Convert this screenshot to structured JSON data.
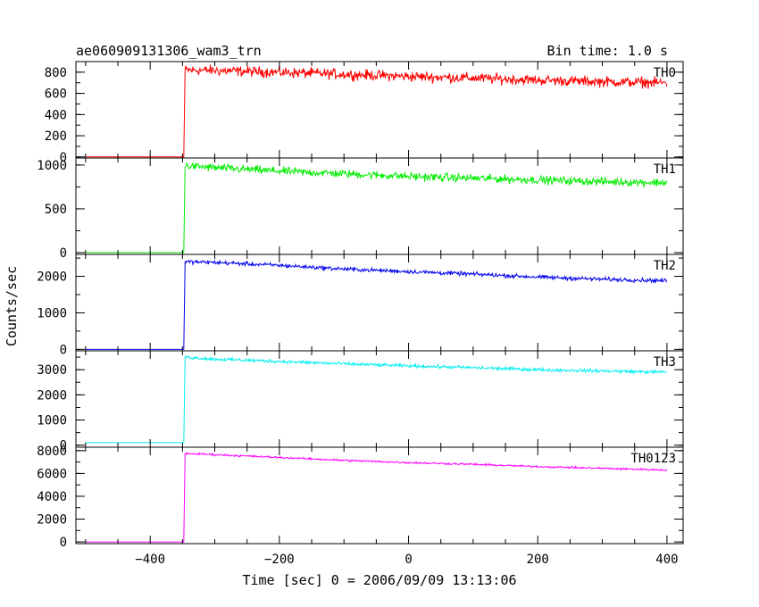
{
  "header": {
    "title": "ae060909131306_wam3_trn",
    "bin_time": "Bin time: 1.0 s"
  },
  "chart_data": {
    "type": "line",
    "title": "ae060909131306_wam3_trn",
    "subtitle": "Bin time: 1.0 s",
    "xlabel": "Time [sec] 0 = 2006/09/09 13:13:06",
    "ylabel": "Counts/sec",
    "xlim": [
      -515,
      425
    ],
    "x_ticks": [
      -400,
      -200,
      0,
      200,
      400
    ],
    "x_tick_labels": [
      "−400",
      "−200",
      "0",
      "200",
      "400"
    ],
    "grid": false,
    "panels": [
      {
        "name": "TH0",
        "color": "#ff0000",
        "ylim": [
          -10,
          900
        ],
        "yticks": [
          0,
          200,
          400,
          600,
          800
        ],
        "noise": 40,
        "points": [
          [
            -500,
            0
          ],
          [
            -348,
            0
          ],
          [
            -346,
            820
          ],
          [
            -300,
            815
          ],
          [
            -200,
            800
          ],
          [
            -100,
            780
          ],
          [
            0,
            760
          ],
          [
            100,
            745
          ],
          [
            200,
            725
          ],
          [
            300,
            710
          ],
          [
            400,
            700
          ]
        ]
      },
      {
        "name": "TH1",
        "color": "#00ee00",
        "ylim": [
          -20,
          1080
        ],
        "yticks": [
          0,
          500,
          1000
        ],
        "noise": 38,
        "points": [
          [
            -500,
            0
          ],
          [
            -348,
            0
          ],
          [
            -346,
            990
          ],
          [
            -300,
            970
          ],
          [
            -200,
            930
          ],
          [
            -100,
            900
          ],
          [
            0,
            870
          ],
          [
            100,
            850
          ],
          [
            200,
            830
          ],
          [
            300,
            810
          ],
          [
            400,
            800
          ]
        ]
      },
      {
        "name": "TH2",
        "color": "#0000ee",
        "ylim": [
          -40,
          2600
        ],
        "yticks": [
          0,
          1000,
          2000
        ],
        "noise": 45,
        "points": [
          [
            -500,
            0
          ],
          [
            -348,
            0
          ],
          [
            -346,
            2400
          ],
          [
            -300,
            2380
          ],
          [
            -200,
            2300
          ],
          [
            -100,
            2200
          ],
          [
            0,
            2130
          ],
          [
            100,
            2060
          ],
          [
            200,
            1980
          ],
          [
            300,
            1920
          ],
          [
            400,
            1880
          ]
        ]
      },
      {
        "name": "TH3",
        "color": "#00eeee",
        "ylim": [
          -80,
          3750
        ],
        "yticks": [
          0,
          1000,
          2000,
          3000
        ],
        "noise": 55,
        "points": [
          [
            -500,
            100
          ],
          [
            -348,
            100
          ],
          [
            -346,
            3500
          ],
          [
            -300,
            3420
          ],
          [
            -200,
            3330
          ],
          [
            -100,
            3230
          ],
          [
            0,
            3150
          ],
          [
            100,
            3080
          ],
          [
            200,
            3000
          ],
          [
            300,
            2950
          ],
          [
            400,
            2900
          ]
        ]
      },
      {
        "name": "TH0123",
        "color": "#ff00ff",
        "ylim": [
          -150,
          8300
        ],
        "yticks": [
          0,
          2000,
          4000,
          6000,
          8000
        ],
        "noise": 70,
        "points": [
          [
            -500,
            0
          ],
          [
            -348,
            0
          ],
          [
            -346,
            7750
          ],
          [
            -300,
            7650
          ],
          [
            -200,
            7400
          ],
          [
            -100,
            7150
          ],
          [
            0,
            6950
          ],
          [
            100,
            6800
          ],
          [
            200,
            6600
          ],
          [
            300,
            6450
          ],
          [
            400,
            6300
          ]
        ]
      }
    ]
  }
}
